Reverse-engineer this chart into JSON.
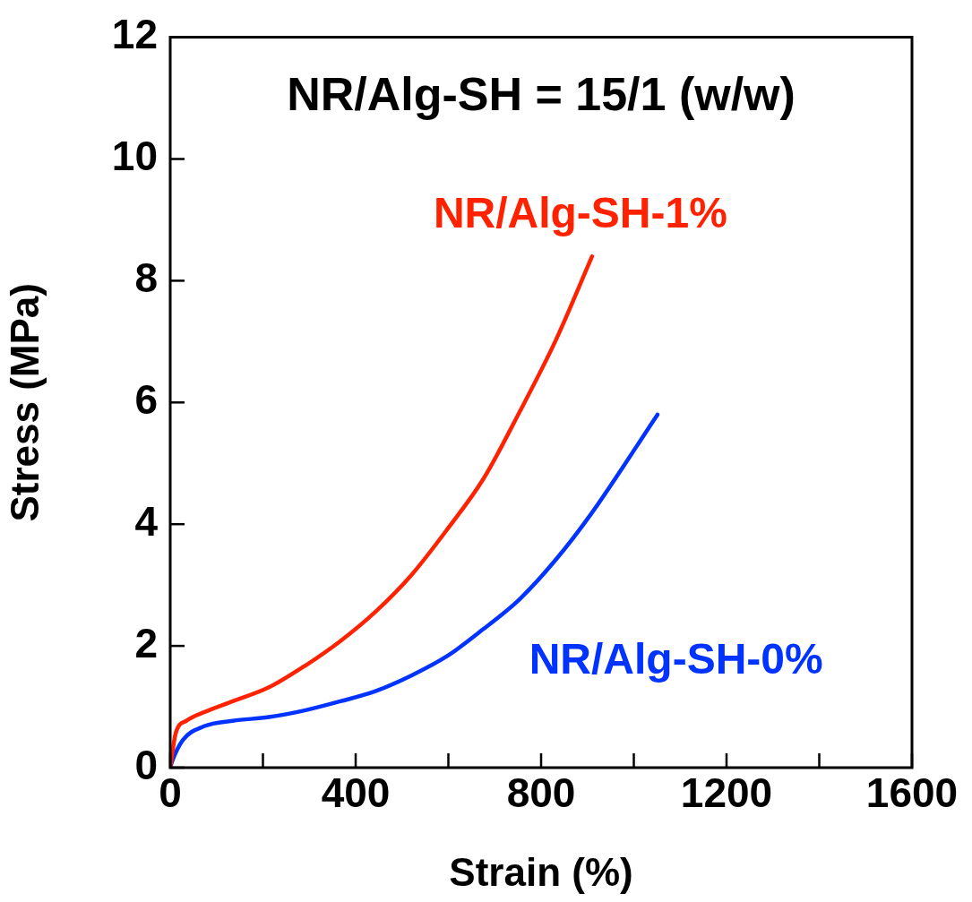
{
  "chart_data": {
    "type": "line",
    "title": "NR/Alg-SH = 15/1 (w/w)",
    "xlabel": "Strain (%)",
    "ylabel": "Stress (MPa)",
    "xlim": [
      0,
      1600
    ],
    "ylim": [
      0,
      12
    ],
    "xticks": [
      0,
      {
        "value": 200,
        "label": null
      },
      400,
      {
        "value": 600,
        "label": null
      },
      800,
      {
        "value": 1000,
        "label": null
      },
      1200,
      {
        "value": 1400,
        "label": null
      },
      1600
    ],
    "yticks": [
      0,
      2,
      4,
      6,
      8,
      10,
      12
    ],
    "grid": false,
    "legend": false,
    "marker": "none",
    "line_style": "solid",
    "series": [
      {
        "name": "NR/Alg-SH-1%",
        "color": "#ff2200",
        "x": [
          0,
          12,
          35,
          73,
          135,
          213,
          290,
          367,
          444,
          522,
          599,
          676,
          754,
          831,
          910
        ],
        "values": [
          0,
          0.57,
          0.77,
          0.91,
          1.09,
          1.32,
          1.67,
          2.08,
          2.57,
          3.18,
          3.93,
          4.75,
          5.85,
          7.01,
          8.4
        ]
      },
      {
        "name": "NR/Alg-SH-0%",
        "color": "#0033ff",
        "x": [
          0,
          4,
          27,
          73,
          135,
          213,
          290,
          367,
          444,
          522,
          599,
          676,
          754,
          831,
          908,
          1051
        ],
        "values": [
          0,
          0.1,
          0.45,
          0.68,
          0.77,
          0.83,
          0.94,
          1.09,
          1.26,
          1.52,
          1.84,
          2.28,
          2.77,
          3.41,
          4.17,
          5.8
        ]
      }
    ]
  }
}
